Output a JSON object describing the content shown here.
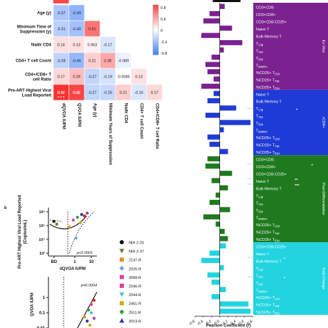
{
  "heatmap": {
    "row_labels": [
      "Age (y)",
      "Minimum Time of Suppression (y)",
      "Nadir CD4",
      "CD4+ T cell Count",
      "CD4+/CD8+ T cell Ratio",
      "Pre-ART Highest Viral Load Reported"
    ],
    "col_labels": [
      "dQVOA IUPM",
      "QVOA IUPM",
      "Age (y)",
      "Minimum Years of Suppression",
      "Nadir CD4",
      "CD4+ T cell Count",
      "CD4+/CD8+ T cell Ratio"
    ],
    "cells": [
      [
        "-0.37",
        "-0.49",
        "",
        "",
        "",
        "",
        ""
      ],
      [
        "-0.31",
        "-0.40",
        "0.61",
        "",
        "",
        "",
        ""
      ],
      [
        "0.14",
        "0.13",
        "0.063",
        "-0.17",
        "",
        "",
        ""
      ],
      [
        "-0.28",
        "-0.46",
        "0.21",
        "0.38",
        "-0.089",
        "",
        ""
      ],
      [
        "0.17",
        "0.29",
        "-0.27",
        "-0.19",
        "-0.0085",
        "0.13",
        ""
      ],
      [
        "0.92",
        "0.82",
        "-0.27",
        "-0.25",
        "0.21",
        "-0.16",
        "0.17"
      ]
    ],
    "stars_label": "* * *",
    "colorbar_ticks": [
      "0.8",
      "0.4",
      "0",
      "-0.4",
      "-0.8"
    ]
  },
  "panel_b": {
    "letter": "b",
    "top_ylabel": "Pre-ART Highest Viral Load Reported (Copies/mL)",
    "top_yticks": [
      "10⁶",
      "10⁵",
      "10⁴",
      "10³"
    ],
    "top_xticks": [
      "BD",
      "1",
      "10"
    ],
    "top_xlabel": "dQVOA IUPM",
    "top_p": "p<0.0001",
    "bottom_ylabel": "QVOA IUPM",
    "bottom_yticks": [
      "1",
      "0.1",
      "0.01"
    ],
    "bottom_p": "p=0.0004",
    "legend": [
      {
        "label": "NIH 2-20",
        "color": "#111111",
        "marker": "circle"
      },
      {
        "label": "NIH 2-37",
        "color": "#5a8a1a",
        "marker": "tri-down"
      },
      {
        "label": "2147-R",
        "color": "#f28c28",
        "marker": "square"
      },
      {
        "label": "2026-R",
        "color": "#7a9fd4",
        "marker": "diamond"
      },
      {
        "label": "3068-R",
        "color": "#e0409a",
        "marker": "square"
      },
      {
        "label": "2046-R",
        "color": "#e0409a",
        "marker": "square"
      },
      {
        "label": "2044-R",
        "color": "#49c1d6",
        "marker": "tri-down"
      },
      {
        "label": "2461-R",
        "color": "#c8b400",
        "marker": "square"
      },
      {
        "label": "2511-R",
        "color": "#3a9b3a",
        "marker": "diamond"
      },
      {
        "label": "2013-R",
        "color": "#283c9c",
        "marker": "tri-up"
      },
      {
        "label": "2185-R",
        "color": "#d42a2a",
        "marker": "tri-up"
      },
      {
        "label": "2274-R",
        "color": "#9a4ab0",
        "marker": "diamond"
      }
    ]
  },
  "right_panel": {
    "xlabel": "Pearson Coefficient (r)",
    "xticks": [
      "-0.6",
      "-0.4",
      "-0.2",
      "0.0",
      "0.2",
      "0.4",
      "0.6",
      "0.8"
    ],
    "groups": [
      {
        "name": "Ex Vivo",
        "color": "#7b2290",
        "labels": [
          "CD3+CD8-",
          "CD3+CD8+",
          "CD3+CD8-CD25+",
          "Naive T",
          "Bulk Memory T",
          "T<sub>CM</sub>",
          "T<sub>TM</sub>",
          "T<sub>EM</sub>",
          "T<sub>EMRA</sub>",
          "%CD25+ T<sub>CM</sub>",
          "%CD25+ T<sub>TM</sub>",
          "%CD25+ T<sub>EM</sub>"
        ]
      },
      {
        "name": "rCD4+",
        "color": "#1f3bd6",
        "labels": [
          "Naive T",
          "Bulk Memory T",
          "T<sub>CM</sub>",
          "T<sub>TM</sub>",
          "T<sub>EM</sub>",
          "T<sub>EMRA</sub>",
          "%CD25+ T<sub>CM</sub>",
          "%CD25+ T<sub>TM</sub>",
          "%CD25+ T<sub>EM</sub>"
        ]
      },
      {
        "name": "Post-Differentiation",
        "color": "#1f7a1f",
        "labels": [
          "CD3+CD8-",
          "CD3+CD8+",
          "CD3+CD8-CD25+",
          "Naive T",
          "Bulk Memory T",
          "T<sub>CM</sub>",
          "T<sub>TM</sub>",
          "T<sub>EM</sub>",
          "T<sub>EMRA</sub>",
          "%CD25+ T<sub>CM</sub>",
          "%CD25+ T<sub>TM</sub>",
          "%CD25+ T<sub>EM</sub>"
        ]
      },
      {
        "name": "Fold Change",
        "color": "#22d3e0",
        "labels": [
          "CD3+CD8-CD25+",
          "Naive T",
          "Bulk Memory T",
          "T<sub>CM</sub>",
          "T<sub>TM</sub>",
          "T<sub>EM</sub>",
          "T<sub>EMRA</sub>",
          "%CD25+ T<sub>CM</sub>",
          "%CD25+ T<sub>TM</sub>",
          "%CD25+ T<sub>EM</sub>"
        ]
      }
    ],
    "stars": [
      "*",
      "*",
      "**",
      "***",
      "*",
      "*"
    ]
  },
  "chart_data": [
    {
      "type": "heatmap",
      "title": "",
      "rows": [
        "Age (y)",
        "Minimum Time of Suppression (y)",
        "Nadir CD4",
        "CD4+ T cell Count",
        "CD4+/CD8+ T cell Ratio",
        "Pre-ART Highest Viral Load Reported"
      ],
      "columns": [
        "dQVOA IUPM",
        "QVOA IUPM",
        "Age (y)",
        "Minimum Years of Suppression",
        "Nadir CD4",
        "CD4+ T cell Count",
        "CD4+/CD8+ T cell Ratio"
      ],
      "values": [
        [
          -0.37,
          -0.49,
          null,
          null,
          null,
          null,
          null
        ],
        [
          -0.31,
          -0.4,
          0.61,
          null,
          null,
          null,
          null
        ],
        [
          0.14,
          0.13,
          0.063,
          -0.17,
          null,
          null,
          null
        ],
        [
          -0.28,
          -0.46,
          0.21,
          0.38,
          -0.089,
          null,
          null
        ],
        [
          0.17,
          0.29,
          -0.27,
          -0.19,
          -0.0085,
          0.13,
          null
        ],
        [
          0.92,
          0.82,
          -0.27,
          -0.25,
          0.21,
          -0.16,
          0.17
        ]
      ],
      "color_range": [
        -0.8,
        0.8
      ]
    },
    {
      "type": "scatter",
      "xlabel": "dQVOA IUPM",
      "ylabel": "Pre-ART Highest Viral Load Reported (Copies/mL)",
      "x_scale": "log",
      "y_scale": "log",
      "ylim": [
        1000,
        3000000
      ],
      "x": [
        "BD",
        0.6,
        1,
        1.5,
        2,
        3,
        4,
        6,
        8,
        10
      ],
      "y": [
        300000,
        200000,
        250000,
        300000,
        500000,
        700000,
        1000000,
        800000,
        1200000,
        1500000
      ],
      "annotation": "p<0.0001"
    },
    {
      "type": "bar",
      "orientation": "horizontal",
      "xlabel": "Pearson Coefficient (r)",
      "xlim": [
        -0.6,
        0.8
      ],
      "series": [
        {
          "name": "Ex Vivo",
          "values": [
            0.12,
            -0.25,
            -0.4,
            0.3,
            -0.45,
            0.55,
            0.1,
            -0.2,
            -0.35,
            -0.3,
            -0.15,
            -0.45
          ]
        },
        {
          "name": "rCD4+",
          "values": [
            -0.15,
            -0.3,
            0.4,
            -0.35,
            0.75,
            0.1,
            -0.3,
            -0.25,
            0.2
          ]
        },
        {
          "name": "Post-Differentiation",
          "values": [
            -0.3,
            -0.35,
            0.3,
            -0.2,
            0.2,
            -0.1,
            -0.25,
            0.25,
            -0.4,
            -0.1,
            0.12,
            0.2
          ]
        },
        {
          "name": "Fold Change",
          "values": [
            0.15,
            -0.25,
            -0.45,
            0.1,
            -0.3,
            -0.2,
            0.15,
            -0.2,
            0.7,
            0.75
          ]
        }
      ]
    }
  ]
}
